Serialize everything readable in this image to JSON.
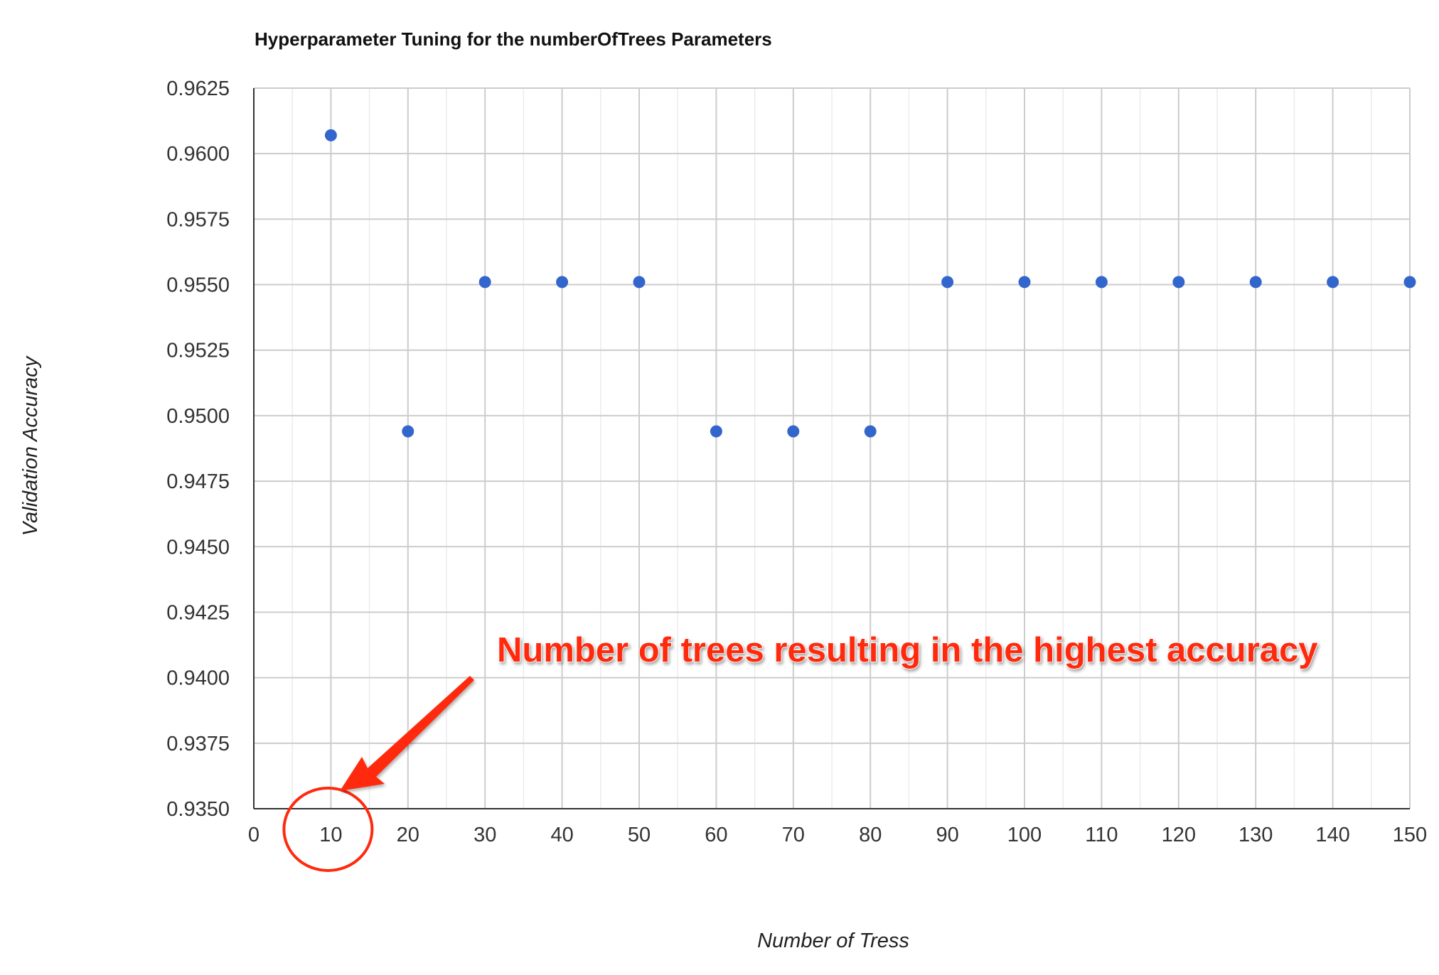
{
  "chart_data": {
    "type": "scatter",
    "title": "Hyperparameter Tuning for the numberOfTrees Parameters",
    "xlabel": "Number of Tress",
    "ylabel": "Validation Accuracy",
    "xlim": [
      0,
      150
    ],
    "ylim": [
      0.935,
      0.9625
    ],
    "x_ticks": [
      "0",
      "10",
      "20",
      "30",
      "40",
      "50",
      "60",
      "70",
      "80",
      "90",
      "100",
      "110",
      "120",
      "130",
      "140",
      "150"
    ],
    "y_ticks": [
      "0.9350",
      "0.9375",
      "0.9400",
      "0.9425",
      "0.9450",
      "0.9475",
      "0.9500",
      "0.9525",
      "0.9550",
      "0.9575",
      "0.9600",
      "0.9625"
    ],
    "grid": true,
    "series": [
      {
        "color": "#3366cc",
        "points": [
          {
            "x": 10,
            "y": 0.9607
          },
          {
            "x": 20,
            "y": 0.9494
          },
          {
            "x": 30,
            "y": 0.9551
          },
          {
            "x": 40,
            "y": 0.9551
          },
          {
            "x": 50,
            "y": 0.9551
          },
          {
            "x": 60,
            "y": 0.9494
          },
          {
            "x": 70,
            "y": 0.9494
          },
          {
            "x": 80,
            "y": 0.9494
          },
          {
            "x": 90,
            "y": 0.9551
          },
          {
            "x": 100,
            "y": 0.9551
          },
          {
            "x": 110,
            "y": 0.9551
          },
          {
            "x": 120,
            "y": 0.9551
          },
          {
            "x": 130,
            "y": 0.9551
          },
          {
            "x": 140,
            "y": 0.9551
          },
          {
            "x": 150,
            "y": 0.9551
          }
        ]
      }
    ],
    "annotation": {
      "text": "Number of trees resulting in the highest accuracy",
      "target_x": 10,
      "color": "#ff2a0e"
    }
  }
}
